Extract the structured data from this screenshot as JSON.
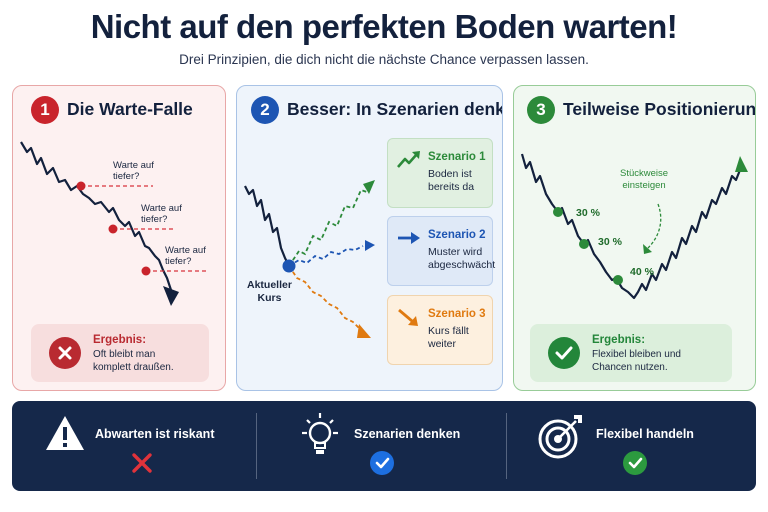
{
  "header": {
    "title": "Nicht auf den perfekten Boden warten!",
    "subtitle": "Drei Prinzipien, die dich nicht die nächste Chance verpassen lassen."
  },
  "panels": [
    {
      "number": "1",
      "title": "Die Warte-Falle",
      "color": "#c9242c",
      "labels": [
        "Warte auf\ntiefer?",
        "Warte auf\ntiefer?",
        "Warte auf\ntiefer?"
      ],
      "result": {
        "head": "Ergebnis:",
        "text": "Oft bleibt man\nkomplett draußen.",
        "icon": "x-circle-icon"
      }
    },
    {
      "number": "2",
      "title": "Besser: In Szenarien denken",
      "color": "#1d55b3",
      "current_label": "Aktueller\nKurs",
      "scenarios": [
        {
          "head": "Szenario 1",
          "text": "Boden ist\nbereits da",
          "color": "#2c8a3a",
          "icon": "trend-up-arrow-icon"
        },
        {
          "head": "Szenario 2",
          "text": "Muster wird\nabgeschwächt",
          "color": "#1d55b3",
          "icon": "arrow-right-icon"
        },
        {
          "head": "Szenario 3",
          "text": "Kurs fällt\nweiter",
          "color": "#e07a10",
          "icon": "arrow-down-right-icon"
        }
      ]
    },
    {
      "number": "3",
      "title": "Teilweise Positionierung",
      "color": "#2c8a3a",
      "annotation": "Stückweise\neinsteigen",
      "steps": [
        "30 %",
        "30 %",
        "40 %"
      ],
      "result": {
        "head": "Ergebnis:",
        "text": "Flexibel bleiben und\nChancen nutzen.",
        "icon": "check-circle-icon"
      }
    }
  ],
  "footer": [
    {
      "label": "Abwarten ist riskant",
      "icon": "warning-triangle-icon",
      "mark": "red-x-icon"
    },
    {
      "label": "Szenarien denken",
      "icon": "lightbulb-icon",
      "mark": "blue-check-icon"
    },
    {
      "label": "Flexibel handeln",
      "icon": "target-arrow-icon",
      "mark": "green-check-icon"
    }
  ]
}
